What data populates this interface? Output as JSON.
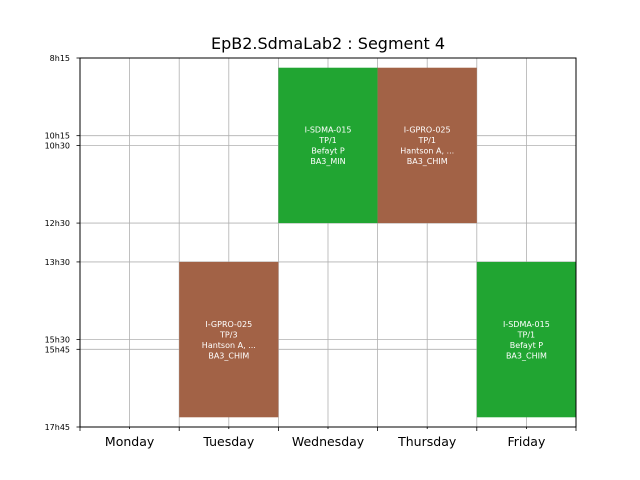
{
  "chart_data": {
    "type": "timetable",
    "title": "EpB2.SdmaLab2 : Segment 4",
    "days": [
      "Monday",
      "Tuesday",
      "Wednesday",
      "Thursday",
      "Friday"
    ],
    "time_ticks": [
      {
        "label": "8h15",
        "hour": 8.25
      },
      {
        "label": "10h15",
        "hour": 10.25
      },
      {
        "label": "10h30",
        "hour": 10.5
      },
      {
        "label": "12h30",
        "hour": 12.5
      },
      {
        "label": "13h30",
        "hour": 13.5
      },
      {
        "label": "15h30",
        "hour": 15.5
      },
      {
        "label": "15h45",
        "hour": 15.75
      },
      {
        "label": "17h45",
        "hour": 17.75
      }
    ],
    "time_range": [
      8.25,
      17.75
    ],
    "events": [
      {
        "day": 2,
        "start": 8.5,
        "end": 12.5,
        "color": "#21a532",
        "lines": [
          "I-SDMA-015",
          "TP/1",
          "Befayt P",
          "BA3_MIN"
        ]
      },
      {
        "day": 3,
        "start": 8.5,
        "end": 12.5,
        "color": "#a26246",
        "lines": [
          "I-GPRO-025",
          "TP/1",
          "Hantson A, ...",
          "BA3_CHIM"
        ]
      },
      {
        "day": 1,
        "start": 13.5,
        "end": 17.5,
        "color": "#a26246",
        "lines": [
          "I-GPRO-025",
          "TP/3",
          "Hantson A, ...",
          "BA3_CHIM"
        ]
      },
      {
        "day": 4,
        "start": 13.5,
        "end": 17.5,
        "color": "#21a532",
        "lines": [
          "I-SDMA-015",
          "TP/1",
          "Befayt P",
          "BA3_CHIM"
        ]
      }
    ],
    "grid": true
  }
}
